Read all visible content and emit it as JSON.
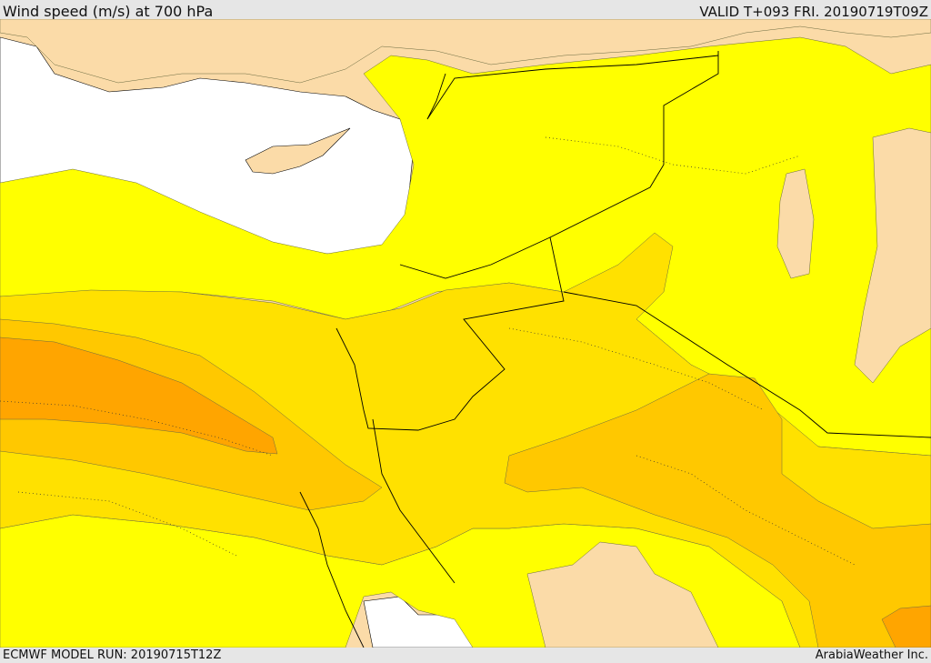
{
  "header": {
    "title": "Wind speed (m/s) at 700 hPa",
    "valid": "VALID T+093 FRI. 20190719T09Z"
  },
  "footer": {
    "model_run": "ECMWF MODEL RUN: 20190715T12Z",
    "credit": "ArabiaWeather Inc."
  },
  "colors": {
    "sea": "#ffffff",
    "land_calm": "#fbdba8",
    "speed_band_1": "#ffff00",
    "speed_band_2": "#ffe100",
    "speed_band_3": "#ffc800",
    "speed_band_4": "#ffa500",
    "borders": "#000000"
  }
}
